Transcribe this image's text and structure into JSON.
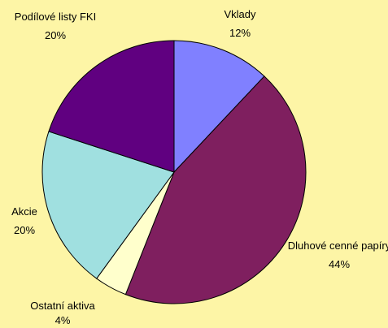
{
  "chart_data": {
    "type": "pie",
    "categories": [
      "Vklady",
      "Dluhové cenné papíry",
      "Ostatní aktiva",
      "Akcie",
      "Podílové listy FKI"
    ],
    "values": [
      12,
      44,
      4,
      20,
      20
    ],
    "value_labels": [
      "12%",
      "44%",
      "4%",
      "20%",
      "20%"
    ],
    "colors": [
      "#8080ff",
      "#7f1f5f",
      "#ffffcc",
      "#a0e0e0",
      "#600080"
    ]
  }
}
